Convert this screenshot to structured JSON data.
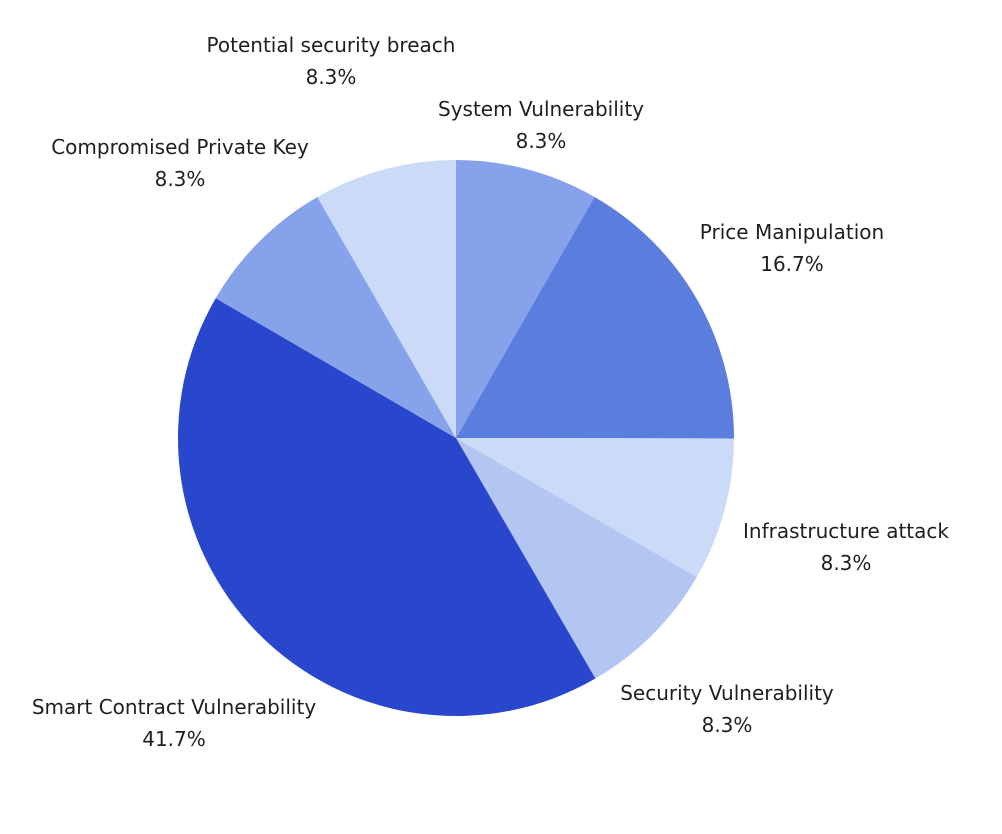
{
  "chart_data": {
    "type": "pie",
    "title": "",
    "start_angle_deg": 0,
    "direction": "clockwise",
    "slices": [
      {
        "label": "System Vulnerability",
        "value": 8.3,
        "value_label": "8.3%",
        "color": "#86A2EA"
      },
      {
        "label": "Price Manipulation",
        "value": 16.7,
        "value_label": "16.7%",
        "color": "#5B7DDE"
      },
      {
        "label": "Infrastructure attack",
        "value": 8.3,
        "value_label": "8.3%",
        "color": "#CBDBF7"
      },
      {
        "label": "Security Vulnerability",
        "value": 8.3,
        "value_label": "8.3%",
        "color": "#B3C6F2"
      },
      {
        "label": "Smart Contract Vulnerability",
        "value": 41.7,
        "value_label": "41.7%",
        "color": "#2847CC"
      },
      {
        "label": "Compromised Private Key",
        "value": 8.3,
        "value_label": "8.3%",
        "color": "#86A2EA"
      },
      {
        "label": "Potential security breach",
        "value": 8.3,
        "value_label": "8.3%",
        "color": "#CBDBF7"
      }
    ]
  }
}
